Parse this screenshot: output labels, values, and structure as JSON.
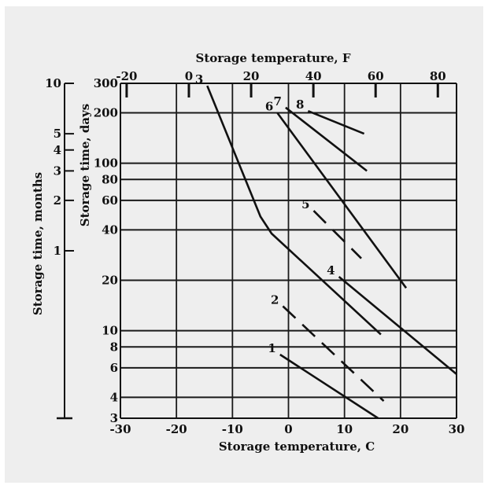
{
  "chart_data": {
    "type": "line",
    "x_bottom": {
      "label": "Storage temperature, ",
      "label_unit": "C",
      "ticks": [
        -30,
        -20,
        -10,
        0,
        10,
        20,
        30
      ],
      "tick_labels": [
        "-30",
        "-20",
        "-10",
        "0",
        "10",
        "20",
        "30"
      ],
      "range": [
        -30,
        30
      ]
    },
    "x_top": {
      "label": "Storage temperature, ",
      "label_unit": "F",
      "ticks": [
        -20,
        0,
        20,
        40,
        60,
        80
      ],
      "tick_labels": [
        "-20",
        "0",
        "20",
        "40",
        "60",
        "80"
      ]
    },
    "y_days": {
      "label": "Storage time, days",
      "scale": "log",
      "range": [
        3,
        300
      ],
      "ticks": [
        3,
        4,
        6,
        8,
        10,
        20,
        40,
        60,
        80,
        100,
        200,
        300
      ],
      "tick_labels": [
        "3",
        "4",
        "6",
        "8",
        "10",
        "20",
        "40",
        "60",
        "80",
        "100",
        "200",
        "300"
      ]
    },
    "y_months": {
      "label": "Storage time, months",
      "ticks": [
        1,
        2,
        3,
        4,
        5,
        10
      ],
      "tick_labels": [
        "1",
        "2",
        "3",
        "4",
        "5",
        "10"
      ]
    },
    "grid": true,
    "series": [
      {
        "label": "1",
        "style": "solid",
        "points": [
          [
            -1.5,
            7.2
          ],
          [
            16,
            3
          ]
        ]
      },
      {
        "label": "2",
        "style": "dashed",
        "points": [
          [
            -1,
            14
          ],
          [
            17,
            3.8
          ]
        ]
      },
      {
        "label": "3",
        "style": "solid",
        "points": [
          [
            -14.5,
            290
          ],
          [
            -5,
            48
          ],
          [
            -3,
            38
          ],
          [
            16.5,
            9.5
          ]
        ]
      },
      {
        "label": "4",
        "style": "solid",
        "points": [
          [
            9,
            21
          ],
          [
            30,
            5.5
          ]
        ]
      },
      {
        "label": "5",
        "style": "dashed",
        "points": [
          [
            4.5,
            52
          ],
          [
            13,
            27
          ]
        ]
      },
      {
        "label": "6",
        "style": "solid",
        "points": [
          [
            -2,
            200
          ],
          [
            21,
            18
          ]
        ]
      },
      {
        "label": "7",
        "style": "solid",
        "points": [
          [
            -0.5,
            215
          ],
          [
            14,
            90
          ]
        ]
      },
      {
        "label": "8",
        "style": "solid",
        "points": [
          [
            3.5,
            205
          ],
          [
            13.5,
            150
          ]
        ]
      }
    ]
  }
}
